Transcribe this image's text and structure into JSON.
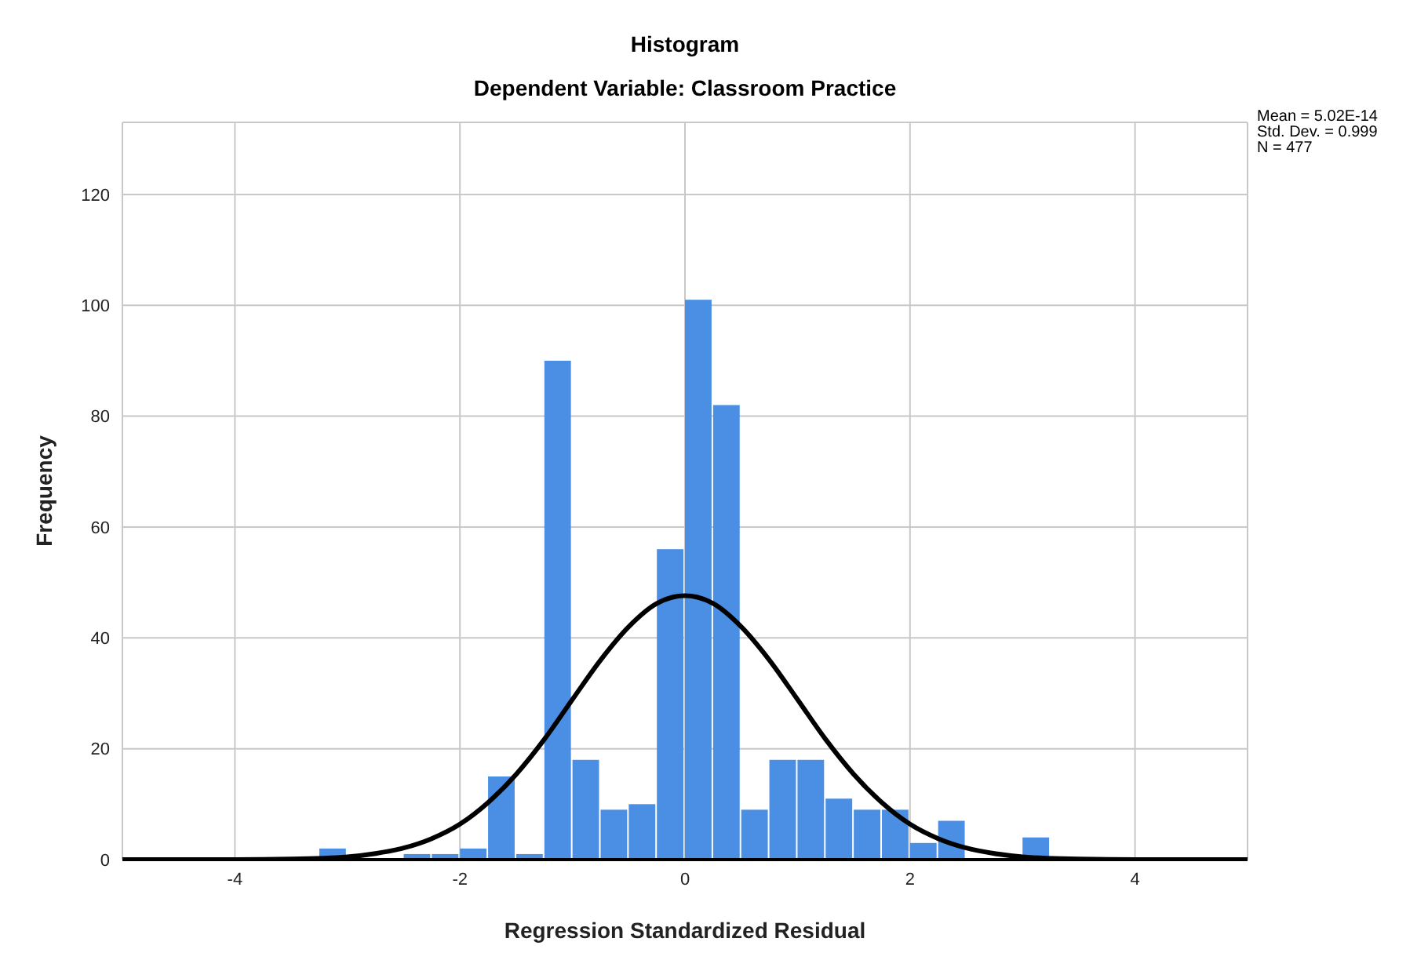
{
  "chart_data": {
    "type": "histogram",
    "title": "Histogram",
    "subtitle": "Dependent Variable: Classroom Practice",
    "xlabel": "Regression Standardized Residual",
    "ylabel": "Frequency",
    "annotations": [
      "Mean = 5.02E-14",
      "Std. Dev. = 0.999",
      "N = 477"
    ],
    "bins": [
      -3.25,
      -3.0,
      -2.75,
      -2.5,
      -2.25,
      -2.0,
      -1.75,
      -1.5,
      -1.25,
      -1.0,
      -0.75,
      -0.5,
      -0.25,
      0,
      0.25,
      0.5,
      0.75,
      1.0,
      1.25,
      1.5,
      1.75,
      2.0,
      2.25,
      2.5,
      2.75,
      3.0,
      3.25
    ],
    "series": [
      {
        "color": "#4a8fe3",
        "values": [
          2,
          0,
          0,
          1,
          1,
          2,
          15,
          1,
          90,
          18,
          9,
          10,
          56,
          101,
          82,
          9,
          18,
          18,
          11,
          9,
          9,
          3,
          7,
          0,
          0,
          4
        ]
      },
      {
        "type": "line",
        "color": "#000000",
        "x": [
          -5,
          -4.5,
          -4,
          -3.5,
          -3,
          -2.75,
          -2.5,
          -2.25,
          -2,
          -1.75,
          -1.5,
          -1.25,
          -1,
          -0.75,
          -0.5,
          -0.25,
          0,
          0.25,
          0.5,
          0.75,
          1,
          1.25,
          1.5,
          1.75,
          2,
          2.25,
          2.5,
          2.75,
          3,
          3.5,
          4,
          4.5,
          5
        ],
        "values": [
          0,
          0,
          0,
          0.1,
          0.5,
          1.1,
          2.1,
          3.8,
          6.4,
          10.3,
          15.4,
          21.7,
          28.9,
          36.0,
          42.0,
          46.2,
          47.6,
          46.2,
          42.0,
          36.0,
          28.9,
          21.7,
          15.4,
          10.3,
          6.4,
          3.8,
          2.1,
          1.1,
          0.5,
          0.1,
          0,
          0,
          0
        ]
      }
    ],
    "xlim": [
      -5,
      5
    ],
    "xticks": [
      -4,
      -2,
      0,
      2,
      4
    ],
    "ylim": [
      0,
      133
    ],
    "yticks": [
      0,
      20,
      40,
      60,
      80,
      100,
      120
    ],
    "grid": true
  }
}
